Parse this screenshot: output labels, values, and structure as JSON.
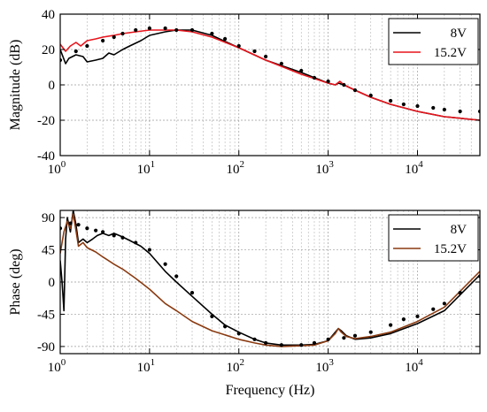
{
  "chart_data": [
    {
      "type": "line",
      "xscale": "log",
      "xlim": [
        1,
        50000
      ],
      "ylim": [
        -40,
        40
      ],
      "yticks": [
        -40,
        -20,
        0,
        20,
        40
      ],
      "xticks": [
        1,
        10,
        100,
        1000,
        10000
      ],
      "xticklabels": [
        "10^0",
        "10^1",
        "10^2",
        "10^3",
        "10^4"
      ],
      "ylabel": "Magnitude (dB)",
      "xlabel": "",
      "grid": true,
      "legend_position": "top-right",
      "series": [
        {
          "name": "8V",
          "color": "#000000",
          "style": "solid",
          "x": [
            1,
            1.15,
            1.25,
            1.5,
            1.8,
            2,
            2.5,
            3,
            3.5,
            4,
            5,
            6,
            8,
            10,
            15,
            20,
            30,
            50,
            100,
            200,
            500,
            1000,
            1200,
            1300,
            1500,
            2000,
            3000,
            5000,
            10000,
            20000,
            50000
          ],
          "y": [
            20,
            12,
            15,
            17,
            16,
            13,
            14,
            15,
            18,
            17,
            20,
            22,
            25,
            28,
            30,
            31,
            31,
            28,
            21,
            14,
            7,
            1,
            0,
            1,
            0,
            -3,
            -7,
            -11,
            -15,
            -18,
            -20
          ]
        },
        {
          "name": "15.2V",
          "color": "#e8141c",
          "style": "solid",
          "x": [
            1,
            1.15,
            1.3,
            1.5,
            1.7,
            2,
            2.5,
            3,
            4,
            5,
            7,
            10,
            15,
            20,
            30,
            50,
            100,
            200,
            500,
            1000,
            1200,
            1350,
            1500,
            2000,
            3000,
            5000,
            10000,
            20000,
            50000
          ],
          "y": [
            23,
            19,
            22,
            24,
            22,
            25,
            26,
            27,
            28,
            29,
            30,
            31,
            31,
            31,
            30,
            27,
            21,
            14,
            6,
            1,
            0,
            2,
            0,
            -3,
            -7,
            -11,
            -15,
            -18,
            -20
          ]
        },
        {
          "name": "",
          "color": "#000000",
          "style": "dots",
          "x": [
            1,
            1.5,
            2,
            3,
            4,
            5,
            7,
            10,
            15,
            20,
            30,
            50,
            70,
            100,
            150,
            200,
            300,
            500,
            700,
            1000,
            1500,
            2000,
            3000,
            5000,
            7000,
            10000,
            15000,
            20000,
            30000,
            50000
          ],
          "y": [
            14,
            19,
            22,
            25,
            27,
            29,
            31,
            32,
            32,
            31,
            31,
            29,
            26,
            22,
            19,
            16,
            12,
            8,
            4,
            2,
            0,
            -3,
            -6,
            -9,
            -11,
            -12,
            -13,
            -14,
            -15,
            -15
          ]
        }
      ]
    },
    {
      "type": "line",
      "xscale": "log",
      "xlim": [
        1,
        50000
      ],
      "ylim": [
        -100,
        100
      ],
      "yticks": [
        -90,
        -45,
        0,
        45,
        90
      ],
      "xticks": [
        1,
        10,
        100,
        1000,
        10000
      ],
      "xticklabels": [
        "10^0",
        "10^1",
        "10^2",
        "10^3",
        "10^4"
      ],
      "ylabel": "Phase (deg)",
      "xlabel": "Frequency (Hz)",
      "grid": true,
      "legend_position": "top-right",
      "series": [
        {
          "name": "8V",
          "color": "#000000",
          "style": "solid",
          "x": [
            1,
            1.05,
            1.1,
            1.15,
            1.2,
            1.3,
            1.4,
            1.5,
            1.6,
            1.8,
            2,
            2.3,
            2.6,
            3,
            3.5,
            4,
            5,
            6,
            8,
            10,
            15,
            20,
            30,
            50,
            70,
            100,
            150,
            200,
            300,
            500,
            700,
            1000,
            1200,
            1300,
            1400,
            1600,
            2000,
            3000,
            5000,
            10000,
            20000,
            50000
          ],
          "y": [
            30,
            0,
            -40,
            60,
            90,
            70,
            100,
            80,
            55,
            60,
            55,
            60,
            65,
            68,
            65,
            68,
            63,
            58,
            50,
            40,
            15,
            0,
            -20,
            -45,
            -60,
            -70,
            -80,
            -85,
            -88,
            -88,
            -87,
            -82,
            -70,
            -65,
            -68,
            -75,
            -80,
            -78,
            -72,
            -58,
            -40,
            10
          ]
        },
        {
          "name": "15.2V",
          "color": "#8a3a10",
          "style": "solid",
          "x": [
            1,
            1.1,
            1.2,
            1.3,
            1.4,
            1.5,
            1.6,
            1.8,
            2,
            2.5,
            3,
            4,
            5,
            7,
            10,
            15,
            20,
            30,
            50,
            100,
            150,
            200,
            300,
            500,
            700,
            1000,
            1200,
            1300,
            1400,
            1600,
            2000,
            3000,
            5000,
            10000,
            20000,
            50000
          ],
          "y": [
            40,
            70,
            85,
            75,
            95,
            72,
            50,
            55,
            48,
            42,
            35,
            25,
            18,
            5,
            -10,
            -30,
            -40,
            -55,
            -68,
            -80,
            -85,
            -88,
            -90,
            -89,
            -88,
            -82,
            -72,
            -65,
            -70,
            -76,
            -79,
            -76,
            -70,
            -55,
            -35,
            15
          ]
        },
        {
          "name": "",
          "color": "#000000",
          "style": "dots",
          "x": [
            1,
            1.3,
            1.6,
            2,
            2.5,
            3,
            4,
            5,
            7,
            10,
            15,
            20,
            30,
            50,
            70,
            100,
            150,
            200,
            300,
            500,
            700,
            1000,
            1500,
            2000,
            3000,
            5000,
            7000,
            10000,
            15000,
            20000,
            30000,
            50000
          ],
          "y": [
            75,
            82,
            80,
            75,
            72,
            70,
            65,
            62,
            55,
            45,
            25,
            8,
            -15,
            -48,
            -62,
            -72,
            -80,
            -85,
            -88,
            -88,
            -85,
            -80,
            -78,
            -75,
            -70,
            -60,
            -52,
            -48,
            -38,
            -30,
            -15,
            8
          ]
        }
      ]
    }
  ]
}
